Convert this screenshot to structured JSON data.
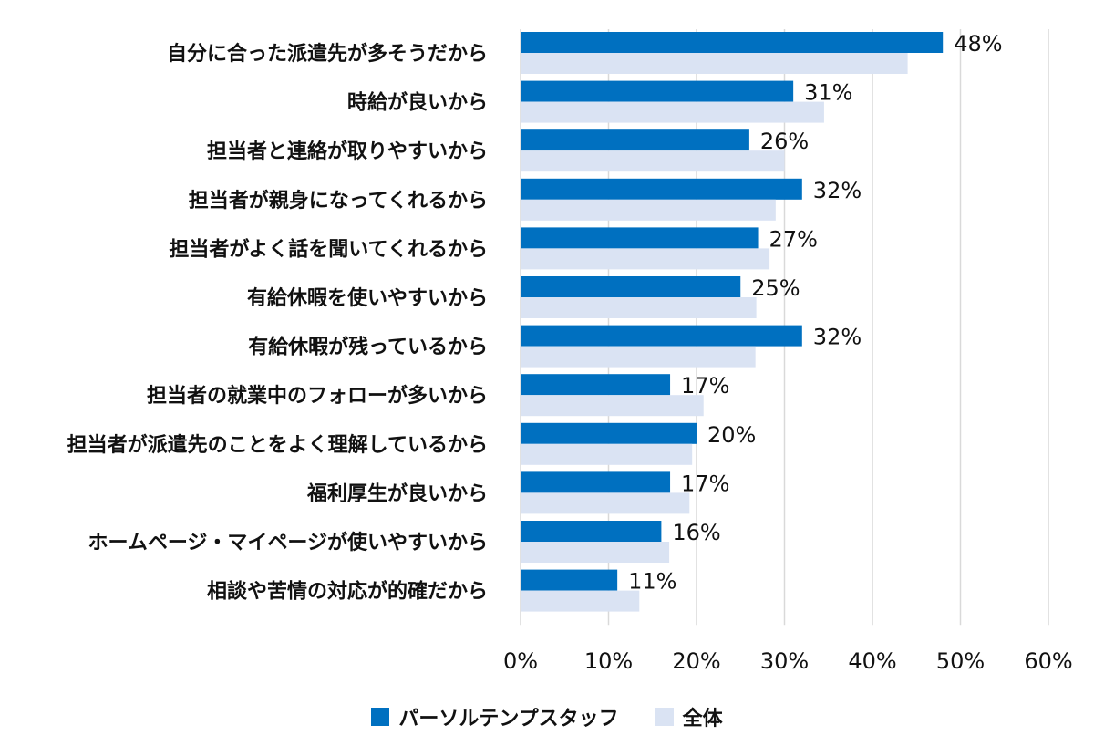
{
  "chart_data": {
    "type": "bar",
    "orientation": "horizontal",
    "categories": [
      "自分に合った派遣先が多そうだから",
      "時給が良いから",
      "担当者と連絡が取りやすいから",
      "担当者が親身になってくれるから",
      "担当者がよく話を聞いてくれるから",
      "有給休暇を使いやすいから",
      "有給休暇が残っているから",
      "担当者の就業中のフォローが多いから",
      "担当者が派遣先のことをよく理解しているから",
      "福利厚生が良いから",
      "ホームページ・マイページが使いやすいから",
      "相談や苦情の対応が的確だから"
    ],
    "series": [
      {
        "name": "パーソルテンプスタッフ",
        "color": "#0070c0",
        "values": [
          48,
          31,
          26,
          32,
          27,
          25,
          32,
          17,
          20,
          17,
          16,
          11
        ],
        "labels": [
          "48%",
          "31%",
          "26%",
          "32%",
          "27%",
          "25%",
          "32%",
          "17%",
          "20%",
          "17%",
          "16%",
          "11%"
        ]
      },
      {
        "name": "全体",
        "color": "#dae3f3",
        "values": [
          44,
          34.5,
          30,
          29,
          28.3,
          26.8,
          26.7,
          20.8,
          19.5,
          19.2,
          16.9,
          13.5
        ]
      }
    ],
    "xlim": [
      0,
      60
    ],
    "xticks": [
      0,
      10,
      20,
      30,
      40,
      50,
      60
    ],
    "xtick_labels": [
      "0%",
      "10%",
      "20%",
      "30%",
      "40%",
      "50%",
      "60%"
    ],
    "grid": true,
    "legend_position": "bottom"
  }
}
